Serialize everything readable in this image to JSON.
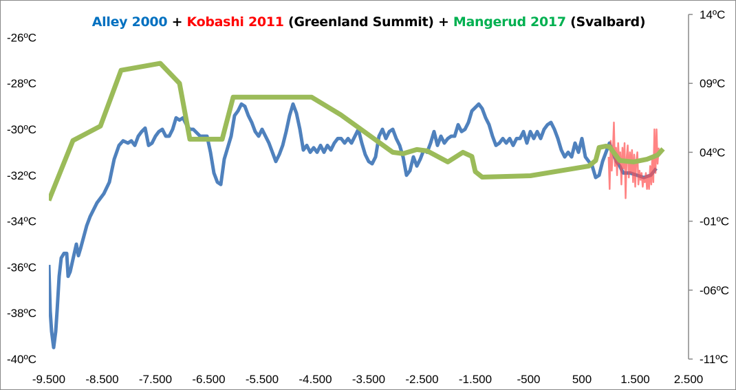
{
  "chart_data": {
    "type": "line",
    "title_parts": [
      {
        "text": "Alley 2000",
        "color": "#0070C0"
      },
      {
        "text": " + ",
        "color": "#000000"
      },
      {
        "text": "Kobashi 2011",
        "color": "#FF0000"
      },
      {
        "text": " (Greenland Summit) + ",
        "color": "#000000"
      },
      {
        "text": "Mangerud 2017",
        "color": "#00B050"
      },
      {
        "text": " (Svalbard)",
        "color": "#000000"
      }
    ],
    "xlabel": "",
    "ylabel": "",
    "xlim": [
      -9500,
      2500
    ],
    "x_ticks": [
      -9500,
      -8500,
      -7500,
      -6500,
      -5500,
      -4500,
      -3500,
      -2500,
      -1500,
      -500,
      500,
      1500,
      2500
    ],
    "x_tick_labels": [
      "-9.500",
      "-8.500",
      "-7.500",
      "-6.500",
      "-5.500",
      "-4.500",
      "-3.500",
      "-2.500",
      "-1.500",
      "-500",
      "500",
      "1.500",
      "2.500"
    ],
    "ylim_left": [
      -40,
      -25
    ],
    "y_ticks_left": [
      -40,
      -38,
      -36,
      -34,
      -32,
      -30,
      -28,
      -26
    ],
    "y_tick_labels_left": [
      "-40ºC",
      "-38ºC",
      "-36ºC",
      "-34ºC",
      "-32ºC",
      "-30ºC",
      "-28ºC",
      "-26ºC"
    ],
    "ylim_right": [
      -11,
      14
    ],
    "y_ticks_right": [
      -11,
      -6,
      -1,
      4,
      9,
      14
    ],
    "y_tick_labels_right": [
      "-11ºC",
      "-06ºC",
      "-01ºC",
      "04ºC",
      "09ºC",
      "14ºC"
    ],
    "grid": false,
    "series": [
      {
        "name": "Alley 2000",
        "axis": "left",
        "color": "#4F81BD",
        "points": [
          [
            -9500,
            -35.9
          ],
          [
            -9474,
            -37.9
          ],
          [
            -9448,
            -38.8
          ],
          [
            -9410,
            -39.5
          ],
          [
            -9371,
            -38.8
          ],
          [
            -9345,
            -37.9
          ],
          [
            -9306,
            -36.4
          ],
          [
            -9268,
            -35.6
          ],
          [
            -9216,
            -35.4
          ],
          [
            -9165,
            -35.4
          ],
          [
            -9139,
            -36.4
          ],
          [
            -9100,
            -36.2
          ],
          [
            -9061,
            -35.8
          ],
          [
            -8984,
            -35.0
          ],
          [
            -8945,
            -35.5
          ],
          [
            -8906,
            -35.2
          ],
          [
            -8790,
            -34.2
          ],
          [
            -8726,
            -33.8
          ],
          [
            -8597,
            -33.2
          ],
          [
            -8468,
            -32.8
          ],
          [
            -8365,
            -32.3
          ],
          [
            -8274,
            -31.3
          ],
          [
            -8184,
            -30.7
          ],
          [
            -8106,
            -30.5
          ],
          [
            -8016,
            -30.6
          ],
          [
            -7952,
            -30.5
          ],
          [
            -7887,
            -30.7
          ],
          [
            -7823,
            -30.3
          ],
          [
            -7758,
            -30.1
          ],
          [
            -7694,
            -29.95
          ],
          [
            -7629,
            -30.7
          ],
          [
            -7565,
            -30.6
          ],
          [
            -7500,
            -30.3
          ],
          [
            -7435,
            -30.1
          ],
          [
            -7371,
            -30.0
          ],
          [
            -7306,
            -30.3
          ],
          [
            -7242,
            -30.3
          ],
          [
            -7177,
            -30.0
          ],
          [
            -7113,
            -29.5
          ],
          [
            -7048,
            -29.6
          ],
          [
            -6984,
            -29.5
          ],
          [
            -6919,
            -29.8
          ],
          [
            -6855,
            -30.0
          ],
          [
            -6790,
            -30.0
          ],
          [
            -6661,
            -30.3
          ],
          [
            -6532,
            -30.3
          ],
          [
            -6468,
            -31.0
          ],
          [
            -6403,
            -31.9
          ],
          [
            -6339,
            -32.3
          ],
          [
            -6274,
            -32.4
          ],
          [
            -6210,
            -31.3
          ],
          [
            -6145,
            -30.8
          ],
          [
            -6081,
            -30.3
          ],
          [
            -6016,
            -29.4
          ],
          [
            -5952,
            -29.2
          ],
          [
            -5887,
            -28.9
          ],
          [
            -5823,
            -29.0
          ],
          [
            -5758,
            -29.4
          ],
          [
            -5694,
            -29.7
          ],
          [
            -5629,
            -30.1
          ],
          [
            -5565,
            -30.3
          ],
          [
            -5500,
            -30.0
          ],
          [
            -5435,
            -30.3
          ],
          [
            -5371,
            -30.6
          ],
          [
            -5306,
            -31.0
          ],
          [
            -5242,
            -31.4
          ],
          [
            -5177,
            -31.1
          ],
          [
            -5113,
            -30.7
          ],
          [
            -5048,
            -30.1
          ],
          [
            -4984,
            -29.4
          ],
          [
            -4919,
            -28.9
          ],
          [
            -4855,
            -29.3
          ],
          [
            -4790,
            -30.0
          ],
          [
            -4726,
            -30.9
          ],
          [
            -4661,
            -30.7
          ],
          [
            -4597,
            -31.0
          ],
          [
            -4532,
            -30.8
          ],
          [
            -4468,
            -31.0
          ],
          [
            -4403,
            -30.7
          ],
          [
            -4339,
            -31.0
          ],
          [
            -4274,
            -30.7
          ],
          [
            -4210,
            -30.9
          ],
          [
            -4145,
            -30.6
          ],
          [
            -4081,
            -30.4
          ],
          [
            -4016,
            -30.4
          ],
          [
            -3952,
            -30.6
          ],
          [
            -3887,
            -30.4
          ],
          [
            -3823,
            -30.6
          ],
          [
            -3758,
            -30.3
          ],
          [
            -3694,
            -30.0
          ],
          [
            -3629,
            -30.6
          ],
          [
            -3565,
            -31.1
          ],
          [
            -3500,
            -31.4
          ],
          [
            -3435,
            -31.5
          ],
          [
            -3371,
            -31.2
          ],
          [
            -3306,
            -30.3
          ],
          [
            -3242,
            -30.0
          ],
          [
            -3177,
            -30.4
          ],
          [
            -3113,
            -30.1
          ],
          [
            -3048,
            -30.0
          ],
          [
            -2984,
            -30.4
          ],
          [
            -2919,
            -30.7
          ],
          [
            -2855,
            -31.2
          ],
          [
            -2790,
            -32.0
          ],
          [
            -2726,
            -31.8
          ],
          [
            -2661,
            -31.2
          ],
          [
            -2597,
            -31.6
          ],
          [
            -2532,
            -31.3
          ],
          [
            -2468,
            -30.9
          ],
          [
            -2403,
            -31.0
          ],
          [
            -2339,
            -30.6
          ],
          [
            -2274,
            -30.1
          ],
          [
            -2210,
            -30.7
          ],
          [
            -2145,
            -30.3
          ],
          [
            -2081,
            -30.6
          ],
          [
            -2016,
            -30.4
          ],
          [
            -1952,
            -30.3
          ],
          [
            -1887,
            -30.3
          ],
          [
            -1823,
            -29.8
          ],
          [
            -1758,
            -30.1
          ],
          [
            -1694,
            -30.0
          ],
          [
            -1629,
            -29.7
          ],
          [
            -1565,
            -29.2
          ],
          [
            -1435,
            -28.9
          ],
          [
            -1371,
            -29.1
          ],
          [
            -1306,
            -29.5
          ],
          [
            -1242,
            -29.8
          ],
          [
            -1177,
            -30.3
          ],
          [
            -1113,
            -30.7
          ],
          [
            -1048,
            -30.6
          ],
          [
            -984,
            -30.4
          ],
          [
            -919,
            -30.6
          ],
          [
            -855,
            -30.4
          ],
          [
            -790,
            -30.7
          ],
          [
            -726,
            -30.4
          ],
          [
            -661,
            -30.4
          ],
          [
            -597,
            -30.1
          ],
          [
            -532,
            -30.6
          ],
          [
            -468,
            -30.1
          ],
          [
            -403,
            -30.4
          ],
          [
            -339,
            -30.1
          ],
          [
            -274,
            -30.4
          ],
          [
            -210,
            -30.0
          ],
          [
            -145,
            -29.8
          ],
          [
            -81,
            -29.7
          ],
          [
            -16,
            -30.0
          ],
          [
            48,
            -30.4
          ],
          [
            113,
            -30.9
          ],
          [
            177,
            -31.2
          ],
          [
            242,
            -31.0
          ],
          [
            306,
            -31.2
          ],
          [
            371,
            -30.6
          ],
          [
            435,
            -31.0
          ],
          [
            500,
            -30.4
          ],
          [
            565,
            -31.2
          ],
          [
            629,
            -31.4
          ],
          [
            694,
            -31.6
          ],
          [
            758,
            -32.1
          ],
          [
            823,
            -32.0
          ],
          [
            887,
            -31.4
          ],
          [
            952,
            -31.0
          ],
          [
            1016,
            -30.6
          ],
          [
            1081,
            -31.0
          ],
          [
            1145,
            -31.4
          ],
          [
            1210,
            -31.6
          ],
          [
            1274,
            -31.9
          ],
          [
            1403,
            -31.9
          ],
          [
            1532,
            -32.0
          ],
          [
            1661,
            -32.1
          ],
          [
            1790,
            -32.0
          ],
          [
            1893,
            -31.7
          ]
        ]
      },
      {
        "name": "Kobashi 2011",
        "axis": "left",
        "color": "#FF5050",
        "points": [
          [
            1000,
            -31.2
          ],
          [
            1020,
            -32.6
          ],
          [
            1040,
            -30.5
          ],
          [
            1060,
            -31.8
          ],
          [
            1080,
            -30.9
          ],
          [
            1100,
            -29.7
          ],
          [
            1120,
            -31.6
          ],
          [
            1140,
            -30.8
          ],
          [
            1160,
            -32.0
          ],
          [
            1180,
            -30.6
          ],
          [
            1200,
            -31.5
          ],
          [
            1220,
            -31.0
          ],
          [
            1240,
            -32.4
          ],
          [
            1260,
            -30.8
          ],
          [
            1280,
            -31.7
          ],
          [
            1300,
            -30.6
          ],
          [
            1320,
            -33.0
          ],
          [
            1340,
            -31.2
          ],
          [
            1360,
            -30.7
          ],
          [
            1380,
            -32.1
          ],
          [
            1400,
            -31.0
          ],
          [
            1420,
            -31.9
          ],
          [
            1440,
            -30.9
          ],
          [
            1460,
            -32.3
          ],
          [
            1480,
            -31.1
          ],
          [
            1500,
            -32.5
          ],
          [
            1520,
            -31.4
          ],
          [
            1540,
            -31.0
          ],
          [
            1560,
            -32.4
          ],
          [
            1580,
            -31.8
          ],
          [
            1600,
            -32.2
          ],
          [
            1620,
            -31.9
          ],
          [
            1640,
            -32.5
          ],
          [
            1660,
            -32.1
          ],
          [
            1680,
            -32.3
          ],
          [
            1700,
            -31.9
          ],
          [
            1720,
            -32.6
          ],
          [
            1740,
            -32.0
          ],
          [
            1760,
            -32.6
          ],
          [
            1780,
            -31.6
          ],
          [
            1800,
            -32.4
          ],
          [
            1820,
            -31.2
          ],
          [
            1840,
            -32.3
          ],
          [
            1860,
            -30.0
          ],
          [
            1880,
            -31.9
          ],
          [
            1900,
            -30.0
          ],
          [
            1920,
            -31.5
          ],
          [
            1940,
            -30.8
          ]
        ]
      },
      {
        "name": "Mangerud 2017",
        "axis": "right",
        "color": "#9BBB59",
        "points": [
          [
            -9500,
            0.5
          ],
          [
            -9048,
            4.85
          ],
          [
            -8532,
            5.9
          ],
          [
            -8145,
            9.95
          ],
          [
            -7410,
            10.45
          ],
          [
            -7048,
            9.0
          ],
          [
            -6855,
            4.95
          ],
          [
            -6248,
            4.95
          ],
          [
            -6042,
            8.0
          ],
          [
            -4571,
            8.0
          ],
          [
            -4016,
            6.7
          ],
          [
            -3048,
            4.0
          ],
          [
            -2855,
            3.9
          ],
          [
            -2597,
            4.2
          ],
          [
            -2403,
            4.1
          ],
          [
            -2016,
            3.3
          ],
          [
            -1732,
            4.0
          ],
          [
            -1565,
            3.7
          ],
          [
            -1500,
            2.6
          ],
          [
            -1371,
            2.2
          ],
          [
            -468,
            2.3
          ],
          [
            629,
            3.0
          ],
          [
            758,
            3.4
          ],
          [
            823,
            4.35
          ],
          [
            952,
            4.45
          ],
          [
            1016,
            4.4
          ],
          [
            1210,
            3.4
          ],
          [
            1468,
            3.3
          ],
          [
            1726,
            3.5
          ],
          [
            1919,
            3.8
          ],
          [
            2023,
            4.25
          ]
        ]
      }
    ]
  }
}
